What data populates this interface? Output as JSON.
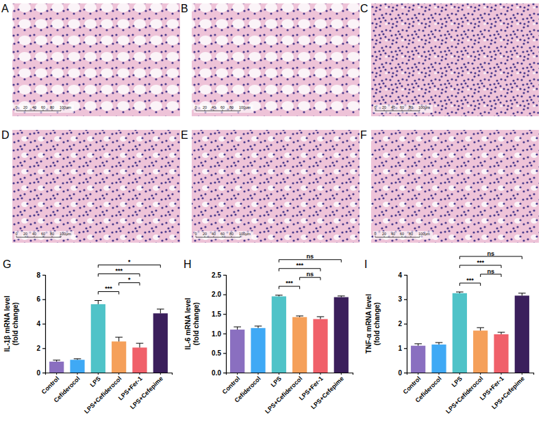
{
  "panels": [
    {
      "letter": "A",
      "scale_bar": [
        "0",
        "20",
        "40",
        "60",
        "80",
        "100μm"
      ]
    },
    {
      "letter": "B",
      "scale_bar": [
        "0",
        "20",
        "40",
        "60",
        "80",
        "100μm"
      ]
    },
    {
      "letter": "C",
      "scale_bar": [
        "0",
        "20",
        "40",
        "60",
        "80",
        "100μm"
      ]
    },
    {
      "letter": "D",
      "scale_bar": [
        "0",
        "20",
        "40",
        "60",
        "80",
        "100μm"
      ]
    },
    {
      "letter": "E",
      "scale_bar": [
        "0",
        "20",
        "40",
        "60",
        "80",
        "100μm"
      ]
    },
    {
      "letter": "F",
      "scale_bar": [
        "0",
        "20",
        "40",
        "60",
        "80",
        "100μm"
      ]
    }
  ],
  "chart_data": [
    {
      "type": "bar",
      "letter": "G",
      "ylabel": "IL-1β mRNA level (fold change)",
      "categories": [
        "Control",
        "Cefiderocol",
        "LPS",
        "LPS+Cefiderocol",
        "LPS+Fer-1",
        "LPS+Cefepime"
      ],
      "values": [
        0.9,
        1.05,
        5.6,
        2.55,
        2.05,
        4.85
      ],
      "errors": [
        0.12,
        0.08,
        0.3,
        0.35,
        0.35,
        0.35
      ],
      "colors": [
        "#8a6fc0",
        "#3fa9f5",
        "#4fc3c8",
        "#f5a05a",
        "#f0606a",
        "#3b1f5c"
      ],
      "ylim": [
        0,
        8
      ],
      "yticks": [
        0,
        2,
        4,
        6,
        8
      ],
      "annotations": [
        {
          "from": "LPS",
          "to": "LPS+Cefiderocol",
          "label": "***"
        },
        {
          "from": "LPS",
          "to": "LPS+Fer-1",
          "label": "***"
        },
        {
          "from": "LPS",
          "to": "LPS+Cefepime",
          "label": "*"
        },
        {
          "from": "LPS+Cefiderocol",
          "to": "LPS+Fer-1",
          "label": "*"
        }
      ]
    },
    {
      "type": "bar",
      "letter": "H",
      "ylabel": "IL-6 mRNA level (fold change)",
      "categories": [
        "Control",
        "Cefiderocol",
        "LPS",
        "LPS+Cefiderocol",
        "LPS+Fer-1",
        "LPS+Cefepime"
      ],
      "values": [
        1.1,
        1.14,
        1.95,
        1.42,
        1.37,
        1.93
      ],
      "errors": [
        0.07,
        0.05,
        0.03,
        0.03,
        0.06,
        0.03
      ],
      "colors": [
        "#8a6fc0",
        "#3fa9f5",
        "#4fc3c8",
        "#f5a05a",
        "#f0606a",
        "#3b1f5c"
      ],
      "ylim": [
        0,
        2.5
      ],
      "yticks": [
        {
          "value": 0,
          "label": "0.0"
        },
        0.5,
        {
          "value": 1,
          "label": "1.0"
        },
        1.5,
        {
          "value": 2,
          "label": "2.0"
        },
        2.5
      ],
      "annotations": [
        {
          "from": "LPS",
          "to": "LPS+Cefepime",
          "label": "ns"
        },
        {
          "from": "LPS",
          "to": "LPS+Cefiderocol",
          "label": "***"
        },
        {
          "from": "LPS",
          "to": "LPS+Fer-1",
          "label": "***"
        },
        {
          "from": "LPS+Cefiderocol",
          "to": "LPS+Fer-1",
          "label": "ns"
        }
      ]
    },
    {
      "type": "bar",
      "letter": "I",
      "ylabel": "TNF-α mRNA level (fold change)",
      "categories": [
        "Control",
        "Cefiderocol",
        "LPS",
        "LPS+Cefiderocol",
        "LPS+Fer-1",
        "LPS+Cefepime"
      ],
      "values": [
        1.1,
        1.15,
        3.25,
        1.72,
        1.57,
        3.15
      ],
      "errors": [
        0.08,
        0.08,
        0.05,
        0.12,
        0.08,
        0.1
      ],
      "colors": [
        "#8a6fc0",
        "#3fa9f5",
        "#4fc3c8",
        "#f5a05a",
        "#f0606a",
        "#3b1f5c"
      ],
      "ylim": [
        0,
        4
      ],
      "yticks": [
        0,
        1,
        2,
        3,
        4
      ],
      "annotations": [
        {
          "from": "LPS",
          "to": "LPS+Cefepime",
          "label": "ns"
        },
        {
          "from": "LPS",
          "to": "LPS+Cefiderocol",
          "label": "***"
        },
        {
          "from": "LPS",
          "to": "LPS+Fer-1",
          "label": "***"
        },
        {
          "from": "LPS+Cefiderocol",
          "to": "LPS+Fer-1",
          "label": "ns"
        }
      ]
    }
  ]
}
